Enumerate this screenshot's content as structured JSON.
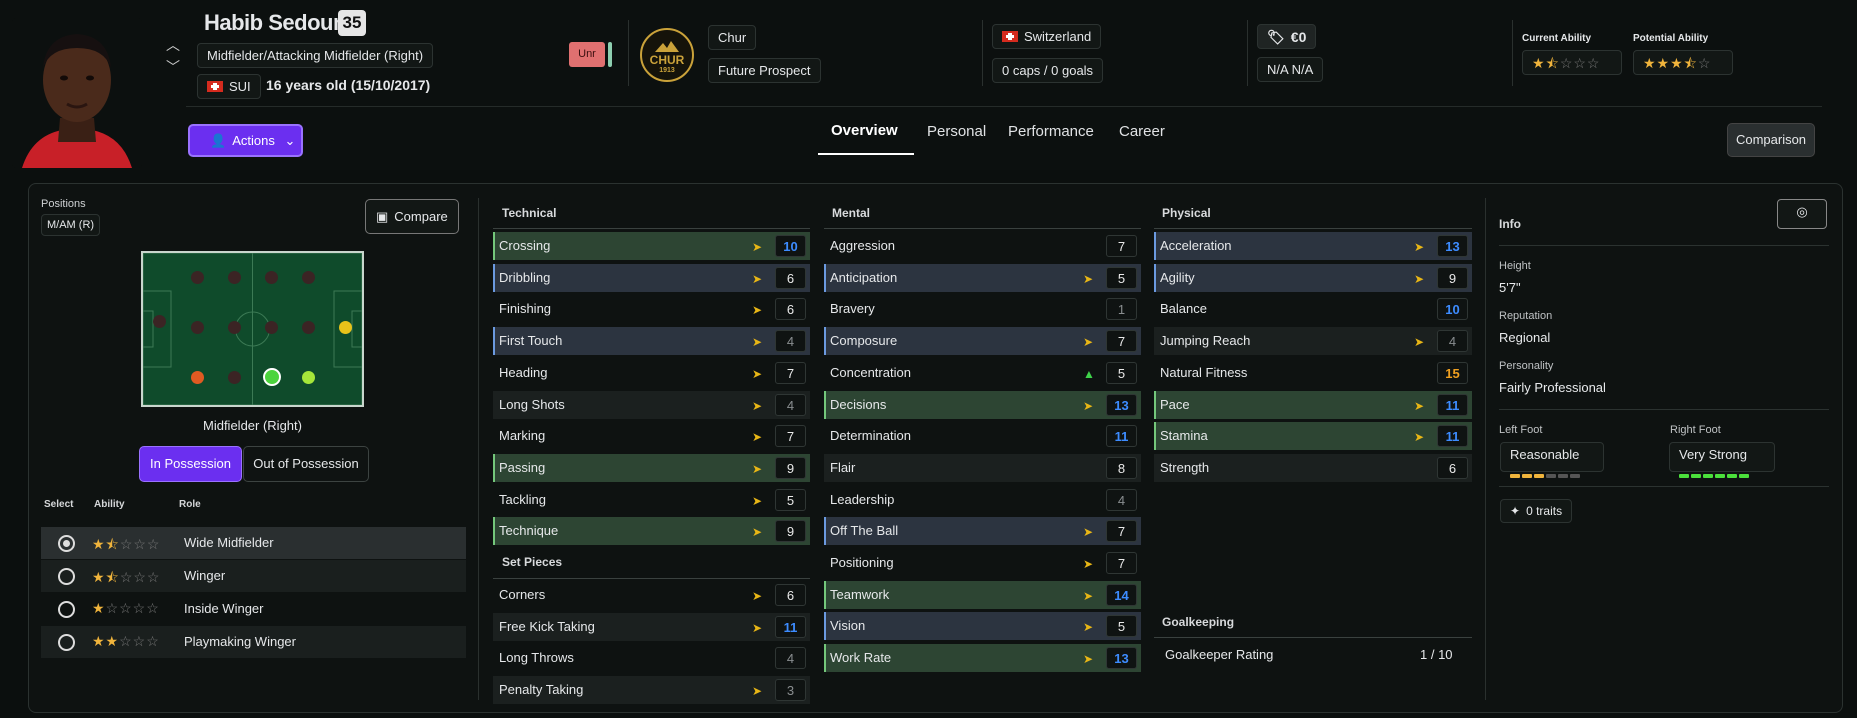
{
  "player": {
    "name": "Habib Sedoum",
    "number": "35",
    "position": "Midfielder/Attacking Midfielder (Right)",
    "nationality_code": "SUI",
    "age": "16 years old (15/10/2017)",
    "status_tag": "Unr",
    "club": "Chur",
    "club_badge_text": "CHUR",
    "club_badge_year": "1913",
    "club_status": "Future Prospect",
    "nation": "Switzerland",
    "caps": "0 caps / 0 goals",
    "value": "€0",
    "wage_a": "N/A",
    "wage_b": "N/A",
    "current_ability_label": "Current Ability",
    "potential_ability_label": "Potential Ability",
    "current_ability_stars": 1.5,
    "potential_ability_stars": 3.5
  },
  "nav": {
    "actions": "Actions",
    "tabs": [
      "Overview",
      "Personal",
      "Performance",
      "Career"
    ],
    "active_tab": "Overview",
    "comparison": "Comparison"
  },
  "positions": {
    "label": "Positions",
    "tag": "M/AM (R)",
    "compare": "Compare",
    "selected_position": "Midfielder (Right)",
    "in_possession": "In Possession",
    "out_of_possession": "Out of Possession"
  },
  "roles": {
    "headers": [
      "Select",
      "Ability",
      "Role"
    ],
    "items": [
      {
        "name": "Wide Midfielder",
        "stars": 1.5,
        "selected": true
      },
      {
        "name": "Winger",
        "stars": 1.5,
        "selected": false
      },
      {
        "name": "Inside Winger",
        "stars": 1,
        "selected": false
      },
      {
        "name": "Playmaking Winger",
        "stars": 2,
        "selected": false
      }
    ]
  },
  "technical": {
    "title": "Technical",
    "items": [
      {
        "name": "Crossing",
        "value": "10"
      },
      {
        "name": "Dribbling",
        "value": "6"
      },
      {
        "name": "Finishing",
        "value": "6"
      },
      {
        "name": "First Touch",
        "value": "4"
      },
      {
        "name": "Heading",
        "value": "7"
      },
      {
        "name": "Long Shots",
        "value": "4"
      },
      {
        "name": "Marking",
        "value": "7"
      },
      {
        "name": "Passing",
        "value": "9"
      },
      {
        "name": "Tackling",
        "value": "5"
      },
      {
        "name": "Technique",
        "value": "9"
      }
    ]
  },
  "setpieces": {
    "title": "Set Pieces",
    "items": [
      {
        "name": "Corners",
        "value": "6"
      },
      {
        "name": "Free Kick Taking",
        "value": "11"
      },
      {
        "name": "Long Throws",
        "value": "4"
      },
      {
        "name": "Penalty Taking",
        "value": "3"
      }
    ]
  },
  "mental": {
    "title": "Mental",
    "items": [
      {
        "name": "Aggression",
        "value": "7"
      },
      {
        "name": "Anticipation",
        "value": "5"
      },
      {
        "name": "Bravery",
        "value": "1"
      },
      {
        "name": "Composure",
        "value": "7"
      },
      {
        "name": "Concentration",
        "value": "5"
      },
      {
        "name": "Decisions",
        "value": "13"
      },
      {
        "name": "Determination",
        "value": "11"
      },
      {
        "name": "Flair",
        "value": "8"
      },
      {
        "name": "Leadership",
        "value": "4"
      },
      {
        "name": "Off The Ball",
        "value": "7"
      },
      {
        "name": "Positioning",
        "value": "7"
      },
      {
        "name": "Teamwork",
        "value": "14"
      },
      {
        "name": "Vision",
        "value": "5"
      },
      {
        "name": "Work Rate",
        "value": "13"
      }
    ]
  },
  "physical": {
    "title": "Physical",
    "items": [
      {
        "name": "Acceleration",
        "value": "13"
      },
      {
        "name": "Agility",
        "value": "9"
      },
      {
        "name": "Balance",
        "value": "10"
      },
      {
        "name": "Jumping Reach",
        "value": "4"
      },
      {
        "name": "Natural Fitness",
        "value": "15"
      },
      {
        "name": "Pace",
        "value": "11"
      },
      {
        "name": "Stamina",
        "value": "11"
      },
      {
        "name": "Strength",
        "value": "6"
      }
    ]
  },
  "goalkeeping": {
    "title": "Goalkeeping",
    "rating_label": "Goalkeeper Rating",
    "rating_value": "1 / 10"
  },
  "info": {
    "title": "Info",
    "height_label": "Height",
    "height": "5'7\"",
    "reputation_label": "Reputation",
    "reputation": "Regional",
    "personality_label": "Personality",
    "personality": "Fairly Professional",
    "left_foot_label": "Left Foot",
    "left_foot": "Reasonable",
    "left_foot_level": 3,
    "right_foot_label": "Right Foot",
    "right_foot": "Very Strong",
    "right_foot_level": 6,
    "traits": "0 traits"
  },
  "colors": {
    "accent": "#6b2ff0",
    "green_row": "#2d4533",
    "blue_row": "#2c3440",
    "blue_value": "#3d8cff",
    "star": "#f0b43c"
  }
}
